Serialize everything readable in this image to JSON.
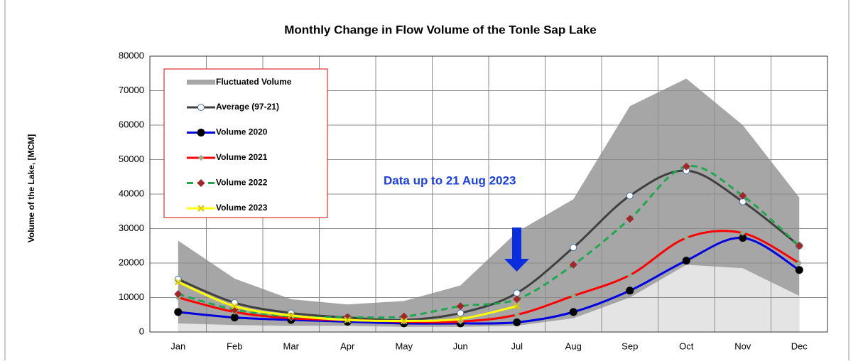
{
  "chart_data": {
    "type": "line",
    "title": "Monthly Change in Flow Volume of the Tonle Sap Lake",
    "y_label": "Volume of the Lake, [MCM]",
    "annotation": "Data up to 21 Aug 2023",
    "categories": [
      "Jan",
      "Feb",
      "Mar",
      "Apr",
      "May",
      "Jun",
      "Jul",
      "Aug",
      "Sep",
      "Oct",
      "Nov",
      "Dec"
    ],
    "ylim": [
      0,
      80000
    ],
    "yticks": [
      0,
      10000,
      20000,
      30000,
      40000,
      50000,
      60000,
      70000,
      80000
    ],
    "grid": true,
    "range": {
      "name": "Fluctuated Volume",
      "color": "#a6a6a6",
      "lower_color": "#e4e4e4",
      "upper": [
        26500,
        15500,
        9500,
        8000,
        9000,
        13500,
        29000,
        38500,
        65500,
        73500,
        60000,
        39000
      ],
      "lower": [
        2500,
        2000,
        1800,
        1800,
        1500,
        1500,
        1800,
        4000,
        10000,
        19500,
        18500,
        10500
      ]
    },
    "series": [
      {
        "name": "Average (97-21)",
        "color": "#404040",
        "marker": "circle-open",
        "dash": false,
        "values": [
          15300,
          8500,
          5500,
          4200,
          3500,
          5500,
          11300,
          24500,
          39500,
          46800,
          37800,
          25000
        ]
      },
      {
        "name": "Volume 2020",
        "color": "#0000e0",
        "marker": "circle",
        "dash": false,
        "values": [
          5800,
          4200,
          3500,
          3000,
          2500,
          2500,
          2800,
          5800,
          12000,
          20700,
          27300,
          18000
        ]
      },
      {
        "name": "Volume 2021",
        "color": "#ff0000",
        "marker": "diamond-gray",
        "dash": false,
        "values": [
          10000,
          5800,
          4000,
          3500,
          3000,
          3000,
          5000,
          10500,
          16500,
          27300,
          28700,
          20000
        ]
      },
      {
        "name": "Volume 2022",
        "color": "#1fa84f",
        "marker": "diamond",
        "dash": true,
        "values": [
          11000,
          6500,
          4500,
          4300,
          4500,
          7500,
          9500,
          19500,
          32800,
          48000,
          39500,
          25000
        ]
      },
      {
        "name": "Volume 2023",
        "color": "#ffff00",
        "marker": "cross",
        "dash": false,
        "values": [
          14500,
          7500,
          4800,
          3500,
          3200,
          3800,
          7500,
          null,
          null,
          null,
          null,
          null
        ]
      }
    ]
  }
}
